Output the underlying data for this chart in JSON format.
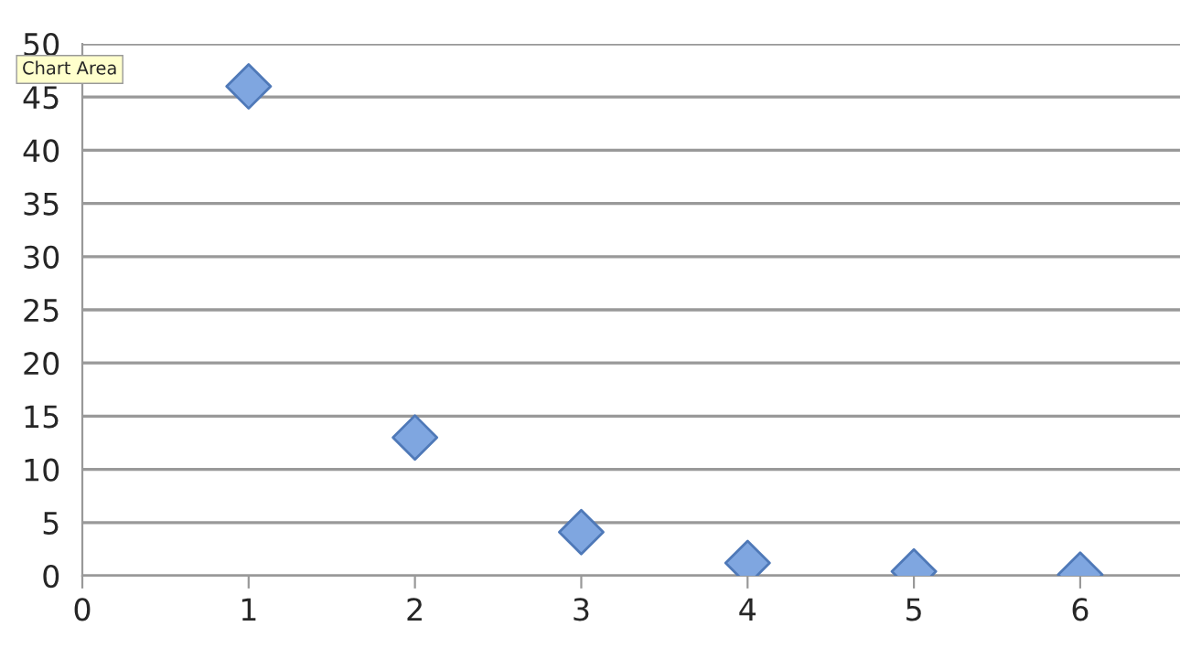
{
  "chart_data": {
    "type": "scatter",
    "x": [
      1,
      2,
      3,
      4,
      5,
      6
    ],
    "series": [
      {
        "color": "#7fa6e0",
        "values": [
          46,
          13,
          4.1,
          1.2,
          0.4,
          0.1
        ]
      }
    ],
    "xlim": [
      0,
      6.6
    ],
    "xticks": [
      0,
      1,
      2,
      3,
      4,
      5,
      6
    ],
    "ylim": [
      0,
      50
    ],
    "yticks": [
      0,
      5,
      10,
      15,
      20,
      25,
      30,
      35,
      40,
      45,
      50
    ],
    "grid": "y",
    "marker": "diamond",
    "legend": false,
    "annotations": [
      "Chart Area"
    ]
  }
}
